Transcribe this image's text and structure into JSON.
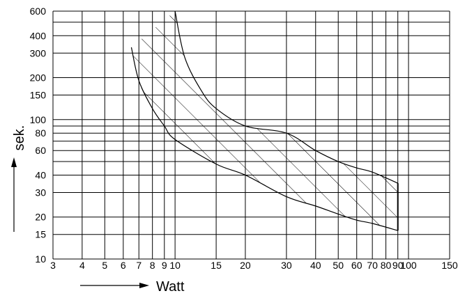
{
  "chart_data": {
    "type": "area",
    "xlabel": "Watt",
    "ylabel": "sek.",
    "x_scale": "log",
    "y_scale": "log",
    "xlim": [
      3,
      150
    ],
    "ylim": [
      10,
      600
    ],
    "grid": true,
    "x_gridlines": [
      3,
      4,
      5,
      6,
      7,
      8,
      9,
      10,
      15,
      20,
      30,
      40,
      50,
      60,
      70,
      80,
      90,
      100,
      150
    ],
    "y_gridlines": [
      10,
      15,
      20,
      30,
      40,
      50,
      60,
      70,
      80,
      90,
      100,
      150,
      200,
      300,
      400,
      500,
      600
    ],
    "x_tick_labels": [
      "3",
      "4",
      "5",
      "6",
      "7",
      "8",
      "9",
      "10",
      "15",
      "20",
      "30",
      "40",
      "50",
      "60",
      "70",
      "80",
      "90",
      "100",
      "150"
    ],
    "y_tick_labels": [
      "10",
      "15",
      "20",
      "30",
      "40",
      "60",
      "80",
      "100",
      "150",
      "200",
      "300",
      "400",
      "600"
    ],
    "series": [
      {
        "x": [
          6.5,
          7.0,
          8.0,
          9.0,
          10.0,
          15.0,
          20.0,
          30.0,
          40.0,
          50.0,
          60.0,
          70.0,
          90.0
        ],
        "y": [
          330,
          190,
          120,
          90,
          72,
          48,
          40,
          28,
          24,
          21,
          19,
          18,
          16
        ]
      },
      {
        "x": [
          10.0,
          11.0,
          13.0,
          15.0,
          20.0,
          30.0,
          40.0,
          50.0,
          60.0,
          70.0,
          90.0
        ],
        "y": [
          600,
          280,
          160,
          120,
          90,
          80,
          60,
          50,
          45,
          42,
          35
        ]
      }
    ],
    "hatch": "diagonal",
    "right_boundary_x": 90
  }
}
